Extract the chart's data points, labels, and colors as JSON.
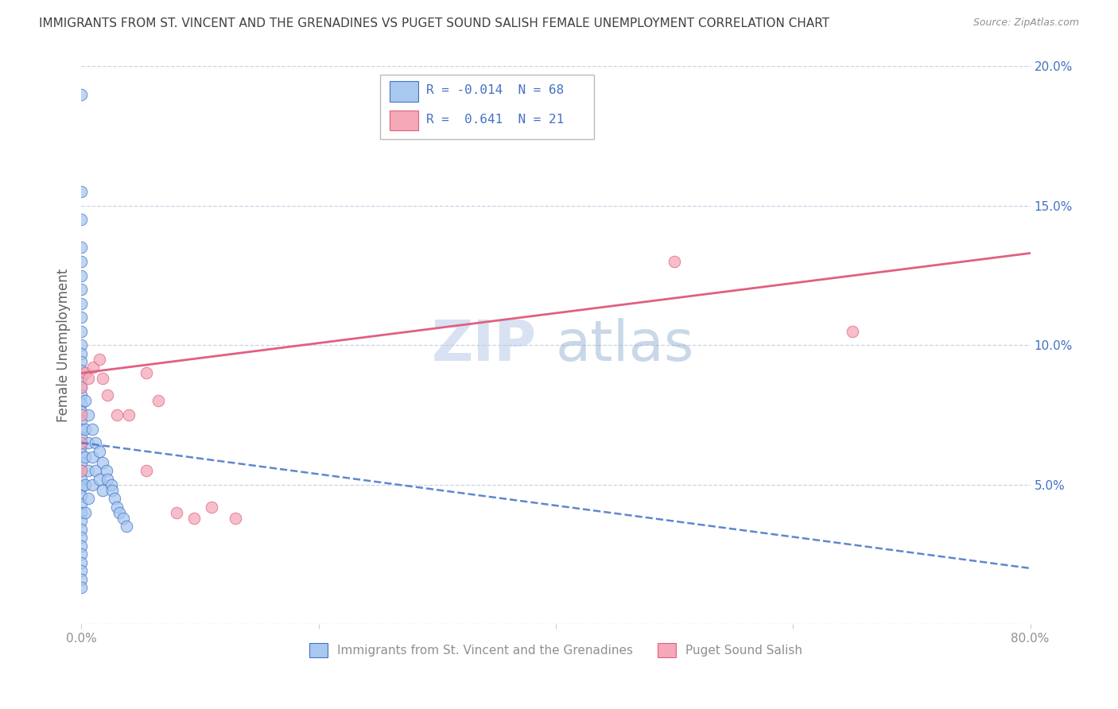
{
  "title": "IMMIGRANTS FROM ST. VINCENT AND THE GRENADINES VS PUGET SOUND SALISH FEMALE UNEMPLOYMENT CORRELATION CHART",
  "source": "Source: ZipAtlas.com",
  "xlabel_bottom": [
    "Immigrants from St. Vincent and the Grenadines",
    "Puget Sound Salish"
  ],
  "ylabel": "Female Unemployment",
  "xlim": [
    0.0,
    0.8
  ],
  "ylim": [
    0.0,
    0.2
  ],
  "xticks": [
    0.0,
    0.2,
    0.4,
    0.6,
    0.8
  ],
  "yticks": [
    0.0,
    0.05,
    0.1,
    0.15,
    0.2
  ],
  "ytick_labels_left": [
    "",
    "",
    "",
    "",
    ""
  ],
  "ytick_labels_right": [
    "",
    "5.0%",
    "10.0%",
    "15.0%",
    "20.0%"
  ],
  "xtick_labels": [
    "0.0%",
    "",
    "",
    "",
    "80.0%"
  ],
  "blue_color": "#A8C8F0",
  "pink_color": "#F4A8B8",
  "blue_line_color": "#4472C4",
  "pink_line_color": "#E06080",
  "title_color": "#404040",
  "axis_label_color": "#606060",
  "tick_color": "#909090",
  "grid_color": "#C8D4E4",
  "watermark": "ZIPatlas",
  "blue_scatter_x": [
    0.0,
    0.0,
    0.0,
    0.0,
    0.0,
    0.0,
    0.0,
    0.0,
    0.0,
    0.0,
    0.0,
    0.0,
    0.0,
    0.0,
    0.0,
    0.0,
    0.0,
    0.0,
    0.0,
    0.0,
    0.0,
    0.0,
    0.0,
    0.0,
    0.0,
    0.0,
    0.0,
    0.0,
    0.0,
    0.0,
    0.0,
    0.0,
    0.0,
    0.0,
    0.0,
    0.0,
    0.0,
    0.0,
    0.0,
    0.0,
    0.003,
    0.003,
    0.003,
    0.003,
    0.003,
    0.006,
    0.006,
    0.006,
    0.006,
    0.009,
    0.009,
    0.009,
    0.012,
    0.012,
    0.015,
    0.015,
    0.018,
    0.018,
    0.021,
    0.022,
    0.025,
    0.026,
    0.028,
    0.03,
    0.032,
    0.035,
    0.038
  ],
  "blue_scatter_y": [
    0.19,
    0.155,
    0.145,
    0.135,
    0.13,
    0.125,
    0.12,
    0.115,
    0.11,
    0.105,
    0.1,
    0.097,
    0.094,
    0.091,
    0.088,
    0.085,
    0.082,
    0.079,
    0.076,
    0.073,
    0.07,
    0.067,
    0.064,
    0.061,
    0.058,
    0.055,
    0.052,
    0.049,
    0.046,
    0.043,
    0.04,
    0.037,
    0.034,
    0.031,
    0.028,
    0.025,
    0.022,
    0.019,
    0.016,
    0.013,
    0.08,
    0.07,
    0.06,
    0.05,
    0.04,
    0.075,
    0.065,
    0.055,
    0.045,
    0.07,
    0.06,
    0.05,
    0.065,
    0.055,
    0.062,
    0.052,
    0.058,
    0.048,
    0.055,
    0.052,
    0.05,
    0.048,
    0.045,
    0.042,
    0.04,
    0.038,
    0.035
  ],
  "pink_scatter_x": [
    0.0,
    0.0,
    0.0,
    0.0,
    0.003,
    0.006,
    0.01,
    0.015,
    0.018,
    0.022,
    0.03,
    0.04,
    0.055,
    0.065,
    0.08,
    0.095,
    0.11,
    0.13,
    0.5,
    0.65,
    0.055
  ],
  "pink_scatter_y": [
    0.085,
    0.075,
    0.065,
    0.055,
    0.09,
    0.088,
    0.092,
    0.095,
    0.088,
    0.082,
    0.075,
    0.075,
    0.09,
    0.08,
    0.04,
    0.038,
    0.042,
    0.038,
    0.13,
    0.105,
    0.055
  ],
  "blue_trend_x": [
    0.0,
    0.8
  ],
  "blue_trend_y": [
    0.065,
    0.02
  ],
  "pink_trend_x": [
    0.0,
    0.8
  ],
  "pink_trend_y": [
    0.09,
    0.133
  ]
}
